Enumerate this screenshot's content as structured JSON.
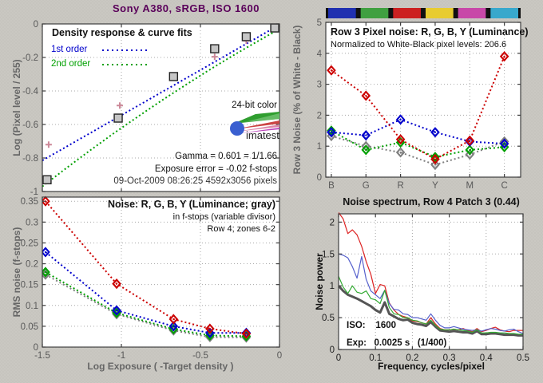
{
  "figure": {
    "title": "Sony A380, sRGB, ISO 1600",
    "title_color": "#5a005a"
  },
  "density_panel": {
    "title": "Density response & curve fits",
    "legend": [
      {
        "label": "1st order",
        "color": "#0000cc"
      },
      {
        "label": "2nd order",
        "color": "#00a000"
      }
    ],
    "ylabel": "Log (Pixel level / 255)",
    "color_depth_label": "24-bit color",
    "logo_text": "imatest",
    "gamma_text": "Gamma = 0.601 = 1/1.66",
    "exposure_error_text": "Exposure error = -0.02 f-stops",
    "exposure_error_color": "#cc8898",
    "timestamp_text": "09-Oct-2009 08:26:25   4592x3056 pixels"
  },
  "rms_panel": {
    "title": "Noise: R, G, B, Y (Luminance; gray)",
    "subtitle1": "in f-stops (variable divisor)",
    "subtitle2": "Row 4; zones 6-2",
    "ylabel": "RMS noise (f-stops)",
    "xlabel": "Log Exposure ( -Target density )"
  },
  "row3_panel": {
    "title": "Row 3 Pixel noise: R, G, B, Y (Luminance)",
    "subtitle": "Normalized to White-Black pixel levels: 206.6",
    "ylabel": "Row 3 Noise (% of White - Black)"
  },
  "spectrum_panel": {
    "title": "Noise spectrum, Row 4 Patch 3 (0.44)",
    "ylabel": "Noise power",
    "xlabel": "Frequency, cycles/pixel",
    "iso_line": "ISO:    1600",
    "exp_line": "Exp:   0.0025 s   (1/400)"
  },
  "chart_data": [
    {
      "id": "density",
      "type": "line",
      "title": "Density response & curve fits",
      "ylabel": "Log (Pixel level / 255)",
      "xlim": [
        -1.5,
        0
      ],
      "ylim": [
        -1,
        0
      ],
      "xticks": [
        -1.5,
        -1,
        -0.5,
        0
      ],
      "xticklabels": [],
      "yticks": [
        0,
        -0.2,
        -0.4,
        -0.6,
        -0.8,
        -1
      ],
      "yticklabels": [
        "0",
        "-0.2",
        "-0.4",
        "-0.6",
        "-0.8",
        "-1"
      ],
      "xgrid": [
        -1,
        -0.5
      ],
      "ygrid": [
        -0.2,
        -0.4,
        -0.6,
        -0.8
      ],
      "tick_color": "#595959",
      "series": [
        {
          "name": "1st-order-fit",
          "color": "#0000cc",
          "line": "dotted",
          "width": 2,
          "x": [
            -1.5,
            0
          ],
          "y": [
            -0.815,
            -0.005
          ]
        },
        {
          "name": "2nd-order-fit",
          "color": "#00a000",
          "line": "dotted",
          "width": 2,
          "x": [
            -1.5,
            -1.35,
            -1.2,
            -1.05,
            -0.9,
            -0.75,
            -0.6,
            -0.45,
            -0.3,
            -0.15,
            0
          ],
          "y": [
            -0.97,
            -0.862,
            -0.756,
            -0.654,
            -0.556,
            -0.46,
            -0.368,
            -0.278,
            -0.192,
            -0.11,
            -0.03
          ]
        },
        {
          "name": "target-exposure",
          "color": "#cc8898",
          "marker": "plus",
          "x": [
            -1.46,
            -1.01,
            -0.41,
            -0.21
          ],
          "y": [
            -0.72,
            -0.487,
            -0.196,
            -0.1
          ]
        },
        {
          "name": "measured-density",
          "color": "#222222",
          "marker": "square",
          "x": [
            -1.47,
            -1.02,
            -0.67,
            -0.41,
            -0.21,
            -0.03
          ],
          "y": [
            -0.93,
            -0.562,
            -0.314,
            -0.148,
            -0.076,
            -0.024
          ]
        }
      ]
    },
    {
      "id": "rms",
      "type": "line",
      "title": "Noise: R, G, B, Y (Luminance; gray)",
      "xlabel": "Log Exposure ( -Target density )",
      "ylabel": "RMS noise (f-stops)",
      "xlim": [
        -1.5,
        0
      ],
      "ylim": [
        0,
        0.36
      ],
      "xticks": [
        -1.5,
        -1,
        -0.5,
        0
      ],
      "xticklabels": [
        "-1.5",
        "-1",
        "-0.5",
        "0"
      ],
      "yticks": [
        0,
        0.05,
        0.1,
        0.15,
        0.2,
        0.25,
        0.3,
        0.35
      ],
      "yticklabels": [
        "0",
        "0.05",
        "0.1",
        "0.15",
        "0.2",
        "0.25",
        "0.3",
        "0.35"
      ],
      "xgrid": [
        -1,
        -0.5
      ],
      "ygrid": [
        0.05,
        0.1,
        0.15,
        0.2,
        0.25,
        0.3,
        0.35
      ],
      "tick_color": "#595959",
      "x": [
        -1.48,
        -1.03,
        -0.67,
        -0.44,
        -0.21
      ],
      "series": [
        {
          "name": "Y-luminance-gray",
          "color": "#808080",
          "marker": "diamond",
          "line": "dotted",
          "width": 2,
          "y": [
            0.174,
            0.079,
            0.04,
            0.024,
            0.023
          ]
        },
        {
          "name": "G",
          "color": "#00a000",
          "marker": "diamond",
          "line": "dotted",
          "width": 2,
          "y": [
            0.18,
            0.082,
            0.043,
            0.028,
            0.026
          ]
        },
        {
          "name": "B",
          "color": "#0000cc",
          "marker": "diamond",
          "line": "dotted",
          "width": 2,
          "y": [
            0.228,
            0.088,
            0.05,
            0.034,
            0.034
          ]
        },
        {
          "name": "R",
          "color": "#cc0000",
          "marker": "diamond",
          "line": "dotted",
          "width": 2,
          "y": [
            0.35,
            0.152,
            0.067,
            0.044,
            0.032
          ]
        }
      ]
    },
    {
      "id": "row3",
      "type": "line",
      "title": "Row 3 Pixel noise: R, G, B, Y (Luminance)",
      "subtitle": "Normalized to White-Black pixel levels: 206.6",
      "ylabel": "Row 3 Noise (% of White - Black)",
      "categories": [
        "B",
        "G",
        "R",
        "Y",
        "M",
        "C"
      ],
      "xlim": [
        0.84,
        6.47
      ],
      "ylim": [
        0,
        5
      ],
      "xticks": [
        1,
        2,
        3,
        4,
        5,
        6
      ],
      "xticklabels": [
        "B",
        "G",
        "R",
        "Y",
        "M",
        "C"
      ],
      "yticks": [
        0,
        1,
        2,
        3,
        4,
        5
      ],
      "yticklabels": [
        "0",
        "1",
        "2",
        "3",
        "4",
        "5"
      ],
      "xgrid": [
        1,
        2,
        3,
        4,
        5,
        6
      ],
      "ygrid": [
        1,
        2,
        3,
        4
      ],
      "tick_color": "#595959",
      "x": [
        1,
        2,
        3,
        4,
        5,
        6
      ],
      "colorbar": [
        "#2030b0",
        "#40a040",
        "#cc2020",
        "#e8cc30",
        "#c848a8",
        "#38a8cc"
      ],
      "series": [
        {
          "name": "Y-luminance",
          "color": "#808080",
          "marker": "diamond",
          "line": "dotted",
          "width": 2,
          "y": [
            1.33,
            1.0,
            0.8,
            0.4,
            0.73,
            1.15
          ]
        },
        {
          "name": "G",
          "color": "#00a000",
          "marker": "diamond",
          "line": "dotted",
          "width": 2,
          "y": [
            1.5,
            0.88,
            1.12,
            0.65,
            0.88,
            0.97
          ]
        },
        {
          "name": "B",
          "color": "#0000cc",
          "marker": "diamond",
          "line": "dotted",
          "width": 2,
          "y": [
            1.45,
            1.35,
            1.86,
            1.45,
            1.15,
            1.08
          ]
        },
        {
          "name": "R",
          "color": "#cc0000",
          "marker": "diamond",
          "line": "dotted",
          "width": 2,
          "y": [
            3.45,
            2.63,
            1.22,
            0.58,
            1.18,
            3.9
          ]
        }
      ]
    },
    {
      "id": "spectrum",
      "type": "line",
      "title": "Noise spectrum, Row 4 Patch 3 (0.44)",
      "xlabel": "Frequency, cycles/pixel",
      "ylabel": "Noise power",
      "iso": "1600",
      "exposure": "0.0025 s (1/400)",
      "xlim": [
        0,
        0.5
      ],
      "ylim": [
        0,
        2.13
      ],
      "xticks": [
        0,
        0.1,
        0.2,
        0.3,
        0.4,
        0.5
      ],
      "xticklabels": [
        "0",
        "0.1",
        "0.2",
        "0.3",
        "0.4",
        "0.5"
      ],
      "yticks": [
        0,
        0.5,
        1,
        1.5,
        2
      ],
      "yticklabels": [
        "0",
        "0.5",
        "1",
        "1.5",
        "2"
      ],
      "xgrid": [
        0.1,
        0.2,
        0.3,
        0.4
      ],
      "ygrid": [
        0.5,
        1,
        1.5,
        2
      ],
      "tick_color": "#222222",
      "x": [
        0,
        0.0125,
        0.025,
        0.0375,
        0.05,
        0.0625,
        0.075,
        0.0875,
        0.1,
        0.1125,
        0.125,
        0.1375,
        0.15,
        0.1625,
        0.175,
        0.1875,
        0.2,
        0.2125,
        0.225,
        0.2375,
        0.25,
        0.2625,
        0.275,
        0.2875,
        0.3,
        0.3125,
        0.325,
        0.3375,
        0.35,
        0.3625,
        0.375,
        0.3875,
        0.4,
        0.4125,
        0.425,
        0.4375,
        0.45,
        0.4625,
        0.475,
        0.4875,
        0.5
      ],
      "series": [
        {
          "name": "Y-luminance",
          "color": "#555555",
          "line": "solid",
          "width": 3,
          "y": [
            1.0,
            0.92,
            0.86,
            0.83,
            0.8,
            0.76,
            0.72,
            0.68,
            0.62,
            0.58,
            0.74,
            0.56,
            0.52,
            0.48,
            0.46,
            0.47,
            0.42,
            0.4,
            0.39,
            0.37,
            0.43,
            0.36,
            0.3,
            0.29,
            0.28,
            0.29,
            0.28,
            0.27,
            0.27,
            0.25,
            0.29,
            0.24,
            0.24,
            0.25,
            0.25,
            0.24,
            0.23,
            0.23,
            0.23,
            0.22,
            0.22
          ]
        },
        {
          "name": "R",
          "color": "#dd2222",
          "line": "solid",
          "width": 1.2,
          "y": [
            2.15,
            2.05,
            1.82,
            1.88,
            1.8,
            1.62,
            1.38,
            1.18,
            0.88,
            1.02,
            1.0,
            0.73,
            0.62,
            0.55,
            0.52,
            0.5,
            0.45,
            0.44,
            0.42,
            0.4,
            0.5,
            0.4,
            0.33,
            0.31,
            0.31,
            0.32,
            0.31,
            0.33,
            0.3,
            0.28,
            0.33,
            0.28,
            0.3,
            0.33,
            0.35,
            0.31,
            0.29,
            0.28,
            0.3,
            0.3,
            0.3
          ]
        },
        {
          "name": "B",
          "color": "#5560cc",
          "line": "solid",
          "width": 1.2,
          "y": [
            1.5,
            1.48,
            1.44,
            1.3,
            1.12,
            1.46,
            1.1,
            0.92,
            0.86,
            0.8,
            0.93,
            0.72,
            0.63,
            0.62,
            0.56,
            0.55,
            0.5,
            0.5,
            0.48,
            0.46,
            0.56,
            0.46,
            0.38,
            0.34,
            0.34,
            0.36,
            0.34,
            0.32,
            0.31,
            0.3,
            0.31,
            0.29,
            0.31,
            0.33,
            0.32,
            0.3,
            0.29,
            0.31,
            0.32,
            0.28,
            0.25
          ]
        },
        {
          "name": "G",
          "color": "#33aa33",
          "line": "solid",
          "width": 1.2,
          "y": [
            1.15,
            0.98,
            0.88,
            1.0,
            0.9,
            0.88,
            0.92,
            0.8,
            0.78,
            0.72,
            0.93,
            0.66,
            0.56,
            0.55,
            0.5,
            0.5,
            0.46,
            0.45,
            0.42,
            0.4,
            0.46,
            0.38,
            0.32,
            0.31,
            0.31,
            0.32,
            0.31,
            0.3,
            0.29,
            0.27,
            0.31,
            0.26,
            0.26,
            0.27,
            0.27,
            0.26,
            0.26,
            0.25,
            0.25,
            0.24,
            0.24
          ]
        }
      ]
    }
  ]
}
